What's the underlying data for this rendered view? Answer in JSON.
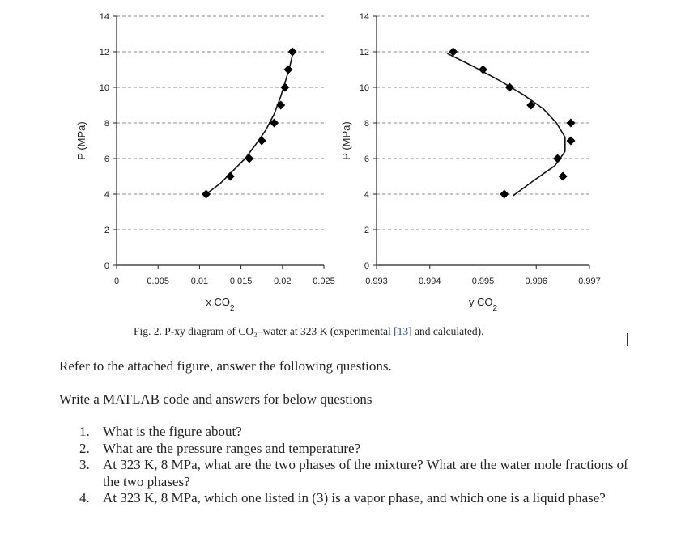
{
  "chart_data": [
    {
      "type": "line",
      "xlabel": "x CO2",
      "ylabel": "P (MPa)",
      "xlim": [
        0,
        0.025
      ],
      "ylim": [
        0,
        14
      ],
      "x_ticks": [
        "0",
        "0.005",
        "0.01",
        "0.015",
        "0.02",
        "0.025"
      ],
      "x_tick_values": [
        0,
        0.005,
        0.01,
        0.015,
        0.02,
        0.025
      ],
      "y_ticks": [
        "0",
        "2",
        "4",
        "6",
        "8",
        "10",
        "12",
        "14"
      ],
      "y_tick_values": [
        0,
        2,
        4,
        6,
        8,
        10,
        12,
        14
      ],
      "grid": "horizontal dashed",
      "series": [
        {
          "kind": "experimental markers",
          "marker": "diamond",
          "x": [
            0.0108,
            0.0137,
            0.016,
            0.0175,
            0.019,
            0.0198,
            0.0203,
            0.0207,
            0.0212
          ],
          "y": [
            4.0,
            5.0,
            6.0,
            7.0,
            8.0,
            9.0,
            10.0,
            11.0,
            12.0
          ]
        },
        {
          "kind": "calculated curve",
          "x": [
            0.0108,
            0.0125,
            0.014,
            0.0155,
            0.0168,
            0.018,
            0.019,
            0.0198,
            0.0204,
            0.0209,
            0.0213
          ],
          "y": [
            4.0,
            4.6,
            5.3,
            6.0,
            6.8,
            7.6,
            8.5,
            9.5,
            10.4,
            11.2,
            12.0
          ]
        }
      ]
    },
    {
      "type": "line",
      "xlabel": "y CO2",
      "ylabel": "P (MPa)",
      "xlim": [
        0.993,
        0.997
      ],
      "ylim": [
        0,
        14
      ],
      "x_ticks": [
        "0.993",
        "0.994",
        "0.995",
        "0.996",
        "0.997"
      ],
      "x_tick_values": [
        0.993,
        0.994,
        0.995,
        0.996,
        0.997
      ],
      "y_ticks": [
        "0",
        "2",
        "4",
        "6",
        "8",
        "10",
        "12",
        "14"
      ],
      "y_tick_values": [
        0,
        2,
        4,
        6,
        8,
        10,
        12,
        14
      ],
      "grid": "horizontal dashed",
      "series": [
        {
          "kind": "experimental markers",
          "marker": "diamond",
          "x": [
            0.99444,
            0.995,
            0.9955,
            0.9959,
            0.99665,
            0.99665,
            0.9964,
            0.9965,
            0.9954
          ],
          "y": [
            12.0,
            11.0,
            10.0,
            9.0,
            8.0,
            7.0,
            6.0,
            5.0,
            4.0
          ]
        },
        {
          "kind": "calculated curve",
          "x": [
            0.99433,
            0.9948,
            0.9953,
            0.99575,
            0.99613,
            0.99638,
            0.99654,
            0.99654,
            0.99635,
            0.99597,
            0.99556
          ],
          "y": [
            11.9,
            11.2,
            10.4,
            9.6,
            8.8,
            8.0,
            7.2,
            6.4,
            5.6,
            4.8,
            3.9
          ]
        }
      ]
    }
  ],
  "caption": {
    "before_ref": "Fig. 2. P-xy diagram of CO₂–water at 323 K (experimental ",
    "ref": "[13]",
    "after_ref": " and calculated)."
  },
  "text": {
    "intro": "Refer to the attached figure, answer the following questions.",
    "instruction": "Write a MATLAB code and answers for below questions"
  },
  "questions": [
    {
      "num": "1.",
      "text": "What is the figure about?"
    },
    {
      "num": "2.",
      "text": "What are the pressure ranges and temperature?"
    },
    {
      "num": "3.",
      "text": "At 323 K, 8 MPa, what are the two phases of the mixture? What are the water mole fractions of the two phases?"
    },
    {
      "num": "4.",
      "text": "At 323 K, 8 MPa, which one listed in (3) is a vapor phase, and which one is a liquid phase?"
    }
  ]
}
